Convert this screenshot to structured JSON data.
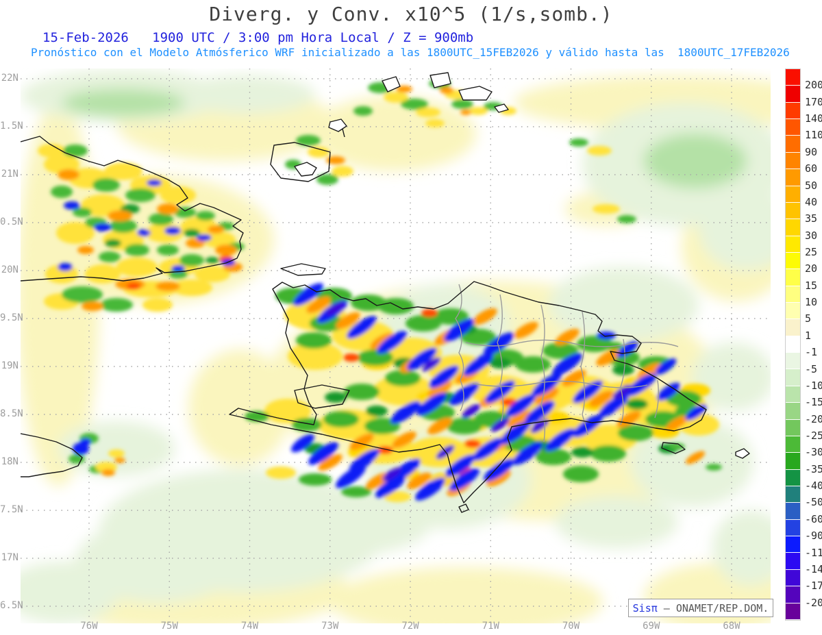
{
  "header": {
    "title": "Diverg. y Conv. x10^5 (1/s,somb.)",
    "subtitle1": "15-Feb-2026   1900 UTC / 3:00 pm Hora Local / Z = 900mb",
    "subtitle2": "Pronóstico con el Modelo Atmósferico WRF inicializado a las 1800UTC_15FEB2026 y válido hasta las  1800UTC_17FEB2026"
  },
  "map": {
    "x_ticks": [
      "76W",
      "75W",
      "74W",
      "73W",
      "72W",
      "71W",
      "70W",
      "69W",
      "68W"
    ],
    "y_ticks": [
      "22N",
      "1.5N",
      "21N",
      "0.5N",
      "20N",
      "9.5N",
      "19N",
      "8.5N",
      "18N",
      "7.5N",
      "17N",
      "6.5N"
    ]
  },
  "colorbar": {
    "labels": [
      "200",
      "170",
      "140",
      "110",
      "90",
      "60",
      "50",
      "40",
      "35",
      "30",
      "25",
      "20",
      "15",
      "10",
      "5",
      "1",
      "-1",
      "-5",
      "-10",
      "-15",
      "-20",
      "-25",
      "-30",
      "-35",
      "-40",
      "-50",
      "-60",
      "-90",
      "-110",
      "-140",
      "-170",
      "-200"
    ],
    "colors": [
      "#fa0f00",
      "#ef0000",
      "#ff3b00",
      "#ff5600",
      "#ff6d00",
      "#ff8400",
      "#ff9a00",
      "#ffaf00",
      "#ffc300",
      "#ffd700",
      "#ffe900",
      "#fdfb05",
      "#ffff48",
      "#ffff80",
      "#ffffb0",
      "#faf2cc",
      "#ffffff",
      "#eaf6e3",
      "#d6efcb",
      "#bae4ab",
      "#99d685",
      "#73c75d",
      "#4cba37",
      "#28a81e",
      "#149344",
      "#20807c",
      "#2b5fc4",
      "#2342e2",
      "#0c1bfe",
      "#2c0af2",
      "#4007d8",
      "#5404bc",
      "#68019b"
    ]
  },
  "attribution": {
    "brand": "Sisπ",
    "org": " – ONAMET/REP.DOM."
  },
  "chart_data": {
    "type": "heatmap",
    "title": "Diverg. y Conv. x10^5 (1/s,somb.)",
    "valid_time": "15-Feb-2026 1900 UTC / 3:00 pm Hora Local",
    "level": "Z = 900mb",
    "model": "WRF inicializado a las 1800UTC_15FEB2026, válido hasta las 1800UTC_17FEB2026",
    "units": "1/s x10^5 (sombreado)",
    "region": "Hispaniola, eastern Cuba, Jamaica, Turks and Caicos, Mona",
    "xlabel_ticks": [
      "76W",
      "75W",
      "74W",
      "73W",
      "72W",
      "71W",
      "70W",
      "69W",
      "68W"
    ],
    "ylabel_ticks": [
      "22N",
      "1.5N",
      "21N",
      "0.5N",
      "20N",
      "9.5N",
      "19N",
      "8.5N",
      "18N",
      "7.5N",
      "17N",
      "6.5N"
    ],
    "xlim_deg_west": [
      76.8,
      67.5
    ],
    "ylim_deg_north": [
      16.4,
      22.25
    ],
    "shading_levels": [
      200,
      170,
      140,
      110,
      90,
      60,
      50,
      40,
      35,
      30,
      25,
      20,
      15,
      10,
      5,
      1,
      -1,
      -5,
      -10,
      -15,
      -20,
      -25,
      -30,
      -35,
      -40,
      -50,
      -60,
      -90,
      -110,
      -140,
      -170,
      -200
    ],
    "legend_position": "right colorbar",
    "grid": "dotted gray at 1-degree lon / 0.5-degree lat",
    "notes": "Strong alternating divergence (yellow/orange/red, positive) and convergence (green/blue/purple, negative) banding over eastern Cuba and Hispaniola terrain; weak pale yellow/green fields over open water; white band near zero."
  }
}
